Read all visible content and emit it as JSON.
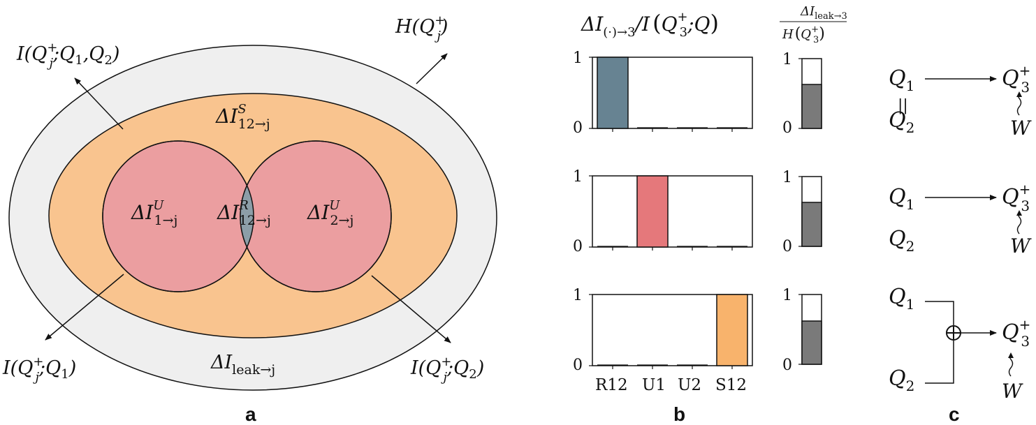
{
  "panel_a": {
    "label": "a",
    "outer_label": "H(Q",
    "outer_sup": "+",
    "outer_sub": "j",
    "outer_tail": ")",
    "joint_label": "I(Q",
    "joint_sup": "+",
    "joint_sub": "j",
    "joint_tail": ";Q",
    "joint_sub1": "1",
    "joint_mid": ",Q",
    "joint_sub2": "2",
    "joint_end": ")",
    "synergy_main": "ΔI",
    "synergy_sup": "S",
    "synergy_sub": "12→j",
    "unique1_main": "ΔI",
    "unique1_sup": "U",
    "unique1_sub": "1→j",
    "redundant_main": "ΔI",
    "redundant_sup": "R",
    "redundant_sub": "12→j",
    "unique2_main": "ΔI",
    "unique2_sup": "U",
    "unique2_sub": "2→j",
    "leak_main": "ΔI",
    "leak_sub": "leak→j",
    "mi1_label": "I(Q",
    "mi1_sup": "+",
    "mi1_sub": "j",
    "mi1_tail": ";Q",
    "mi1_sub1": "1",
    "mi1_end": ")",
    "mi2_label": "I(Q",
    "mi2_sup": "+",
    "mi2_sub": "j",
    "mi2_tail": ";Q",
    "mi2_sub1": "2",
    "mi2_end": ")",
    "colors": {
      "outer": "#efefef",
      "synergy": "#f9c48f",
      "unique": "#eb9ea0",
      "redundant": "#8c9ea8"
    }
  },
  "panel_b": {
    "label": "b",
    "title_main": "ΔI",
    "title_sub": "(·)→3",
    "title_mid": "/I",
    "title_q": "Q",
    "title_sup": "+",
    "title_qsub": "3",
    "title_end": ";Q",
    "leak_num_main": "ΔI",
    "leak_num_sub": "leak→3",
    "leak_den_main": "H",
    "leak_den_q": "Q",
    "leak_den_sup": "+",
    "leak_den_sub": "3",
    "categories": [
      "R12",
      "U1",
      "U2",
      "S12"
    ],
    "y_ticks": [
      "0",
      "1"
    ]
  },
  "chart_data": [
    {
      "type": "bar",
      "categories": [
        "R12",
        "U1",
        "U2",
        "S12"
      ],
      "values": [
        1,
        0,
        0,
        0
      ],
      "ylim": [
        0,
        1
      ],
      "bar_color": "#678392"
    },
    {
      "type": "bar",
      "categories": [
        "R12",
        "U1",
        "U2",
        "S12"
      ],
      "values": [
        0,
        1,
        0,
        0
      ],
      "ylim": [
        0,
        1
      ],
      "bar_color": "#e5787b"
    },
    {
      "type": "bar",
      "categories": [
        "R12",
        "U1",
        "U2",
        "S12"
      ],
      "values": [
        0,
        0,
        0,
        1
      ],
      "ylim": [
        0,
        1
      ],
      "bar_color": "#f8b36c"
    },
    {
      "type": "bar",
      "categories": [
        ""
      ],
      "values": [
        0.63
      ],
      "ylim": [
        0,
        1
      ],
      "bar_color": "#7a7a7a"
    },
    {
      "type": "bar",
      "categories": [
        ""
      ],
      "values": [
        0.63
      ],
      "ylim": [
        0,
        1
      ],
      "bar_color": "#7a7a7a"
    },
    {
      "type": "bar",
      "categories": [
        ""
      ],
      "values": [
        0.62
      ],
      "ylim": [
        0,
        1
      ],
      "bar_color": "#7a7a7a"
    }
  ],
  "panel_c": {
    "label": "c",
    "q1": "Q",
    "q1_sub": "1",
    "q2": "Q",
    "q2_sub": "2",
    "target": "Q",
    "target_sup": "+",
    "target_sub": "3",
    "noise": "W",
    "equals": "||",
    "xor_symbol": "⊕"
  }
}
